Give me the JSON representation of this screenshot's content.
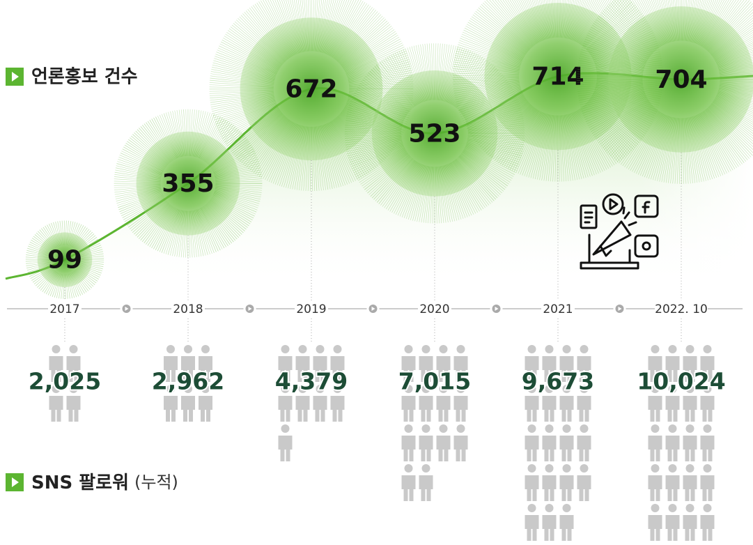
{
  "chart_data": [
    {
      "type": "bubble",
      "title": "언론홍보 건수",
      "categories": [
        "2017",
        "2018",
        "2019",
        "2020",
        "2021",
        "2022. 10"
      ],
      "values": [
        99,
        355,
        672,
        523,
        714,
        704
      ],
      "color": "#5cb531"
    },
    {
      "type": "pictograph",
      "title": "SNS 팔로워",
      "subtitle": "(누적)",
      "values": [
        2025,
        2962,
        4379,
        7015,
        9673,
        10024
      ],
      "value_labels": [
        "2,025",
        "2,962",
        "4,379",
        "7,015",
        "9,673",
        "10,024"
      ],
      "color": "#c9c9c9"
    }
  ]
}
